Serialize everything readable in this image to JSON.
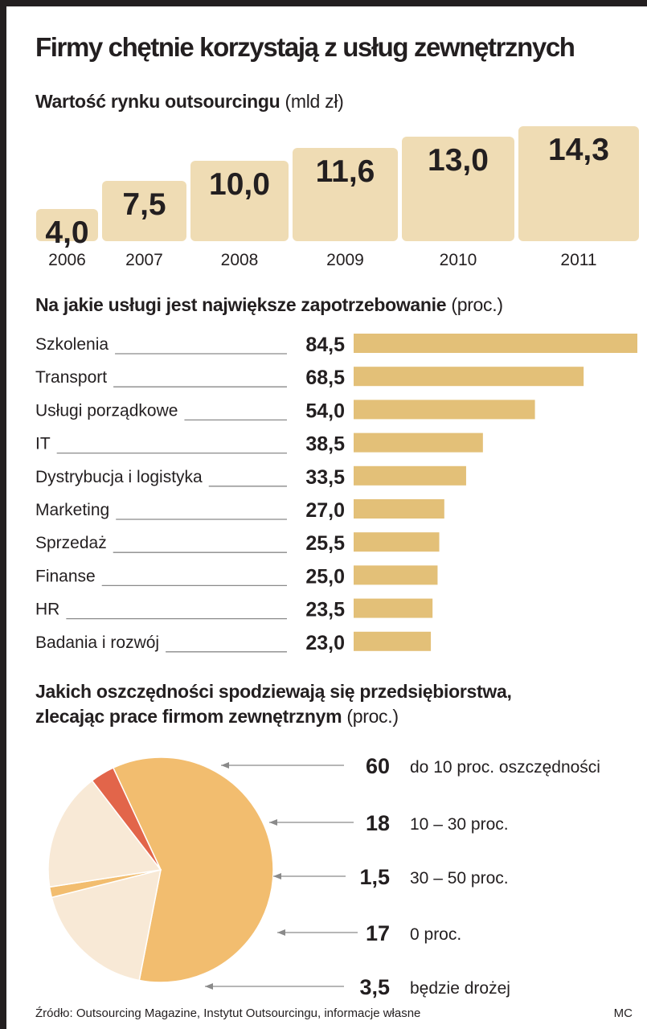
{
  "title": "Firmy chętnie korzystają z usług zewnętrznych",
  "source": "Źródło: Outsourcing Magazine, Instytut Outsourcingu, informacje własne",
  "author": "MC",
  "chart_data": [
    {
      "type": "bar",
      "title": "Wartość rynku outsourcingu",
      "unit": "(mld zł)",
      "categories": [
        "2006",
        "2007",
        "2008",
        "2009",
        "2010",
        "2011"
      ],
      "values": [
        4.0,
        7.5,
        10.0,
        11.6,
        13.0,
        14.3
      ],
      "value_labels": [
        "4,0",
        "7,5",
        "10,0",
        "11,6",
        "13,0",
        "14,3"
      ],
      "color": "#efdcb4"
    },
    {
      "type": "bar",
      "orientation": "horizontal",
      "title": "Na jakie usługi jest największe zapotrzebowanie",
      "unit": "(proc.)",
      "categories": [
        "Szkolenia",
        "Transport",
        "Usługi porządkowe",
        "IT",
        "Dystrybucja i logistyka",
        "Marketing",
        "Sprzedaż",
        "Finanse",
        "HR",
        "Badania i rozwój"
      ],
      "values": [
        84.5,
        68.5,
        54.0,
        38.5,
        33.5,
        27.0,
        25.5,
        25.0,
        23.5,
        23.0
      ],
      "value_labels": [
        "84,5",
        "68,5",
        "54,0",
        "38,5",
        "33,5",
        "27,0",
        "25,5",
        "25,0",
        "23,5",
        "23,0"
      ],
      "color": "#e3c078"
    },
    {
      "type": "pie",
      "title_line1": "Jakich oszczędności spodziewają się przedsiębiorstwa,",
      "title_line2": "zlecając prace firmom zewnętrznym",
      "unit": "(proc.)",
      "labels": [
        "do 10 proc. oszczędności",
        "10 – 30 proc.",
        "30 – 50 proc.",
        "0 proc.",
        "będzie drożej"
      ],
      "values": [
        60,
        18,
        1.5,
        17,
        3.5
      ],
      "value_labels": [
        "60",
        "18",
        "1,5",
        "17",
        "3,5"
      ],
      "colors": [
        "#f2bd6f",
        "#f8e9d6",
        "#f2bd6f",
        "#f8e9d6",
        "#e2654a"
      ]
    }
  ]
}
